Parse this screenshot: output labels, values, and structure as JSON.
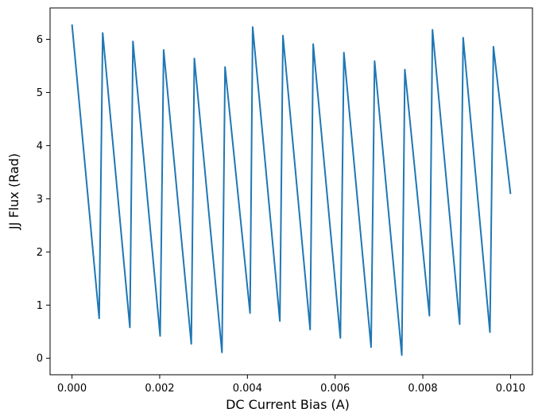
{
  "chart_data": {
    "type": "line",
    "title": "",
    "xlabel": "DC Current Bias (A)",
    "ylabel": "JJ Flux (Rad)",
    "xlim": [
      -0.0005,
      0.0105
    ],
    "ylim": [
      -0.31,
      6.59
    ],
    "grid": false,
    "x_ticks": [
      "0.000",
      "0.002",
      "0.004",
      "0.006",
      "0.008",
      "0.010"
    ],
    "y_ticks": [
      "0",
      "1",
      "2",
      "3",
      "4",
      "5",
      "6"
    ],
    "colors": {
      "line": "#1f77b4",
      "axes": "#000000",
      "background": "#ffffff"
    },
    "series": [
      {
        "x": [
          0.0,
          0.00062,
          0.0007,
          0.00132,
          0.00139,
          0.00201,
          0.00209,
          0.00272,
          0.00279,
          0.00342,
          0.00349,
          0.00406,
          0.00412,
          0.00474,
          0.00481,
          0.00543,
          0.0055,
          0.00612,
          0.0062,
          0.00682,
          0.0069,
          0.00752,
          0.00759,
          0.00815,
          0.00822,
          0.00884,
          0.00892,
          0.00953,
          0.00961,
          0.01
        ],
        "y": [
          6.28,
          0.75,
          6.12,
          0.58,
          5.96,
          0.42,
          5.8,
          0.27,
          5.64,
          0.11,
          5.48,
          0.85,
          6.23,
          0.7,
          6.07,
          0.54,
          5.91,
          0.38,
          5.75,
          0.21,
          5.59,
          0.06,
          5.43,
          0.8,
          6.18,
          0.64,
          6.03,
          0.49,
          5.86,
          3.09
        ]
      }
    ]
  }
}
